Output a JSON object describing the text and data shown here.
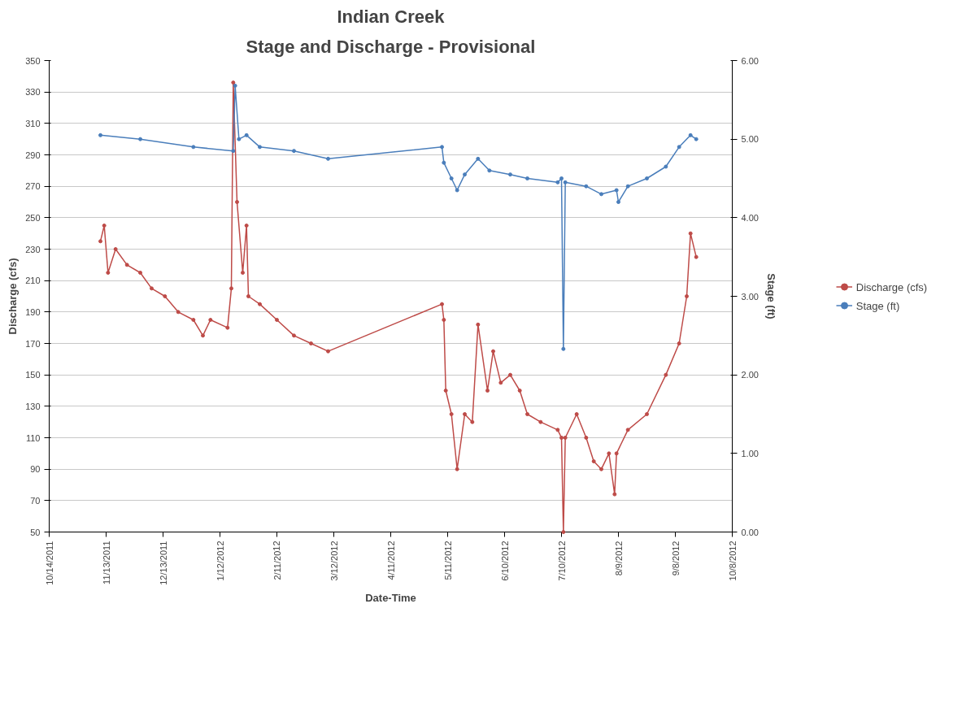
{
  "chart_data": {
    "type": "line",
    "title": "Indian Creek",
    "subtitle": "Stage and Discharge - Provisional",
    "xlabel": "Date-Time",
    "ylabel": "Discharge (cfs)",
    "y2label": "Stage (ft)",
    "xlim": [
      "2011-10-14",
      "2012-10-08"
    ],
    "xticks": [
      {
        "value": "2011-10-14",
        "label": "10/14/2011"
      },
      {
        "value": "2011-11-13",
        "label": "11/13/2011"
      },
      {
        "value": "2011-12-13",
        "label": "12/13/2011"
      },
      {
        "value": "2012-01-12",
        "label": "1/12/2012"
      },
      {
        "value": "2012-02-11",
        "label": "2/11/2012"
      },
      {
        "value": "2012-03-12",
        "label": "3/12/2012"
      },
      {
        "value": "2012-04-11",
        "label": "4/11/2012"
      },
      {
        "value": "2012-05-11",
        "label": "5/11/2012"
      },
      {
        "value": "2012-06-10",
        "label": "6/10/2012"
      },
      {
        "value": "2012-07-10",
        "label": "7/10/2012"
      },
      {
        "value": "2012-08-09",
        "label": "8/9/2012"
      },
      {
        "value": "2012-09-08",
        "label": "9/8/2012"
      },
      {
        "value": "2012-10-08",
        "label": "10/8/2012"
      }
    ],
    "ylim": [
      50,
      350
    ],
    "yticks": [
      50,
      70,
      90,
      110,
      130,
      150,
      170,
      190,
      210,
      230,
      250,
      270,
      290,
      310,
      330,
      350
    ],
    "y2lim": [
      0,
      6
    ],
    "y2ticks": [
      {
        "value": 0,
        "label": "0.00"
      },
      {
        "value": 1,
        "label": "1.00"
      },
      {
        "value": 2,
        "label": "2.00"
      },
      {
        "value": 3,
        "label": "3.00"
      },
      {
        "value": 4,
        "label": "4.00"
      },
      {
        "value": 5,
        "label": "5.00"
      },
      {
        "value": 6,
        "label": "6.00"
      }
    ],
    "grid": "y",
    "legend": "right",
    "marker": "circle",
    "series": [
      {
        "name": "Discharge (cfs)",
        "color": "#be4b48",
        "x": [
          "2011-11-10",
          "2011-11-12",
          "2011-11-14",
          "2011-11-18",
          "2011-11-24",
          "2011-12-01",
          "2011-12-07",
          "2011-12-14",
          "2011-12-21",
          "2011-12-29",
          "2012-01-03",
          "2012-01-07",
          "2012-01-16",
          "2012-01-18",
          "2012-01-19",
          "2012-01-21",
          "2012-01-24",
          "2012-01-26",
          "2012-01-27",
          "2012-02-02",
          "2012-02-11",
          "2012-02-20",
          "2012-02-29",
          "2012-03-09",
          "2012-05-08",
          "2012-05-09",
          "2012-05-10",
          "2012-05-13",
          "2012-05-16",
          "2012-05-20",
          "2012-05-24",
          "2012-05-27",
          "2012-06-01",
          "2012-06-04",
          "2012-06-08",
          "2012-06-13",
          "2012-06-18",
          "2012-06-22",
          "2012-06-29",
          "2012-07-08",
          "2012-07-10",
          "2012-07-11",
          "2012-07-12",
          "2012-07-18",
          "2012-07-23",
          "2012-07-27",
          "2012-07-31",
          "2012-08-04",
          "2012-08-07",
          "2012-08-08",
          "2012-08-14",
          "2012-08-24",
          "2012-09-03",
          "2012-09-10",
          "2012-09-14",
          "2012-09-16",
          "2012-09-19"
        ],
        "values": [
          235,
          245,
          215,
          230,
          220,
          215,
          205,
          200,
          190,
          185,
          175,
          185,
          180,
          205,
          336,
          260,
          215,
          245,
          200,
          195,
          185,
          175,
          170,
          165,
          195,
          185,
          140,
          125,
          90,
          125,
          120,
          182,
          140,
          165,
          145,
          150,
          140,
          125,
          120,
          115,
          110,
          50,
          110,
          125,
          110,
          95,
          90,
          100,
          74,
          100,
          115,
          125,
          150,
          170,
          200,
          240,
          225
        ]
      },
      {
        "name": "Stage (ft)",
        "color": "#4a7ebb",
        "axis": "y2",
        "x": [
          "2011-11-10",
          "2011-12-01",
          "2011-12-29",
          "2012-01-19",
          "2012-01-20",
          "2012-01-22",
          "2012-01-26",
          "2012-02-02",
          "2012-02-20",
          "2012-03-09",
          "2012-05-08",
          "2012-05-09",
          "2012-05-13",
          "2012-05-16",
          "2012-05-20",
          "2012-05-27",
          "2012-06-02",
          "2012-06-13",
          "2012-06-22",
          "2012-07-08",
          "2012-07-10",
          "2012-07-11",
          "2012-07-12",
          "2012-07-23",
          "2012-07-31",
          "2012-08-08",
          "2012-08-09",
          "2012-08-14",
          "2012-08-24",
          "2012-09-03",
          "2012-09-10",
          "2012-09-16",
          "2012-09-19"
        ],
        "values": [
          5.05,
          5.0,
          4.9,
          4.85,
          5.68,
          5.0,
          5.05,
          4.9,
          4.85,
          4.75,
          4.9,
          4.7,
          4.5,
          4.35,
          4.55,
          4.75,
          4.6,
          4.55,
          4.5,
          4.45,
          4.5,
          2.33,
          4.45,
          4.4,
          4.3,
          4.35,
          4.2,
          4.4,
          4.5,
          4.65,
          4.9,
          5.05,
          5.0
        ]
      }
    ]
  }
}
